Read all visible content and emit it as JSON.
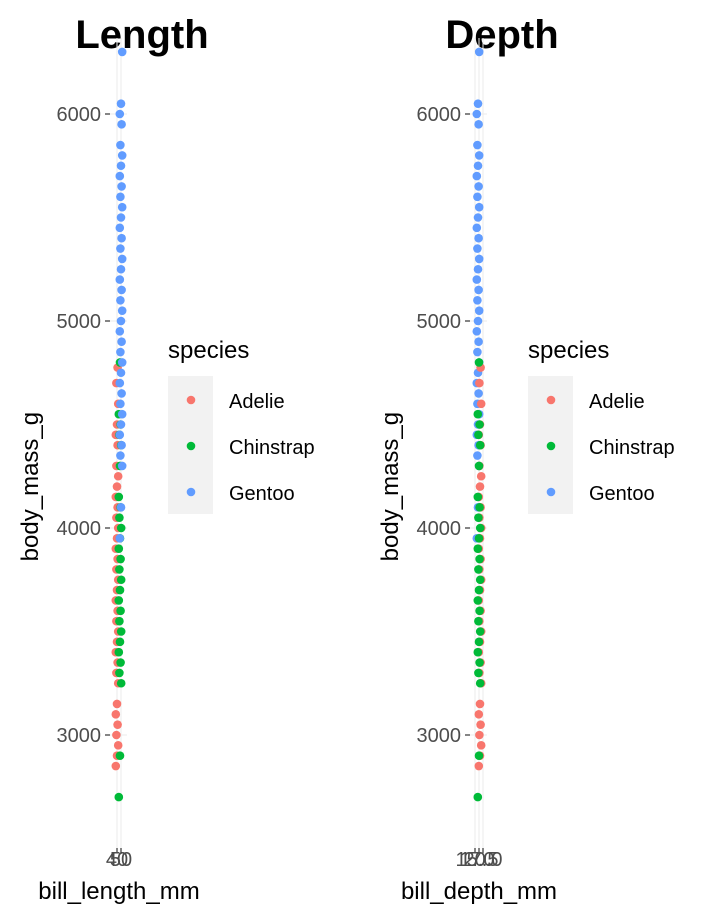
{
  "chart_data": [
    {
      "type": "scatter",
      "title": "Length",
      "xlabel": "bill_length_mm",
      "ylabel": "body_mass_g",
      "x_tick_labels": [
        "40",
        "50"
      ],
      "y_ticks": [
        3000,
        4000,
        5000,
        6000
      ],
      "ylim": [
        2500,
        6400
      ],
      "grid": true,
      "legend": {
        "title": "species",
        "position": "right",
        "entries": [
          "Adelie",
          "Chinstrap",
          "Gentoo"
        ]
      },
      "series": [
        {
          "name": "Adelie",
          "values": [
            2850,
            2900,
            2950,
            3000,
            3050,
            3100,
            3150,
            3250,
            3300,
            3350,
            3400,
            3450,
            3500,
            3550,
            3600,
            3650,
            3700,
            3750,
            3800,
            3850,
            3900,
            3950,
            4000,
            4050,
            4100,
            4150,
            4200,
            4250,
            4300,
            4400,
            4450,
            4500,
            4600,
            4700,
            4775
          ]
        },
        {
          "name": "Chinstrap",
          "values": [
            2700,
            2900,
            3250,
            3300,
            3350,
            3400,
            3450,
            3500,
            3550,
            3600,
            3650,
            3700,
            3750,
            3800,
            3850,
            3900,
            3950,
            4000,
            4050,
            4100,
            4150,
            4300,
            4400,
            4450,
            4500,
            4550,
            4800
          ]
        },
        {
          "name": "Gentoo",
          "values": [
            3950,
            4100,
            4300,
            4350,
            4400,
            4450,
            4500,
            4550,
            4600,
            4650,
            4700,
            4750,
            4800,
            4850,
            4900,
            4950,
            5000,
            5050,
            5100,
            5150,
            5200,
            5250,
            5300,
            5350,
            5400,
            5450,
            5500,
            5550,
            5600,
            5650,
            5700,
            5750,
            5800,
            5850,
            5950,
            6000,
            6050,
            6300
          ]
        }
      ]
    },
    {
      "type": "scatter",
      "title": "Depth",
      "xlabel": "bill_depth_mm",
      "ylabel": "body_mass_g",
      "x_tick_labels": [
        "15.0",
        "17.5",
        "20.0"
      ],
      "y_ticks": [
        3000,
        4000,
        5000,
        6000
      ],
      "ylim": [
        2500,
        6400
      ],
      "grid": true,
      "legend": {
        "title": "species",
        "position": "right",
        "entries": [
          "Adelie",
          "Chinstrap",
          "Gentoo"
        ]
      },
      "series": [
        {
          "name": "Adelie",
          "values": [
            2850,
            2900,
            2950,
            3000,
            3050,
            3100,
            3150,
            3250,
            3300,
            3350,
            3400,
            3450,
            3500,
            3550,
            3600,
            3650,
            3700,
            3750,
            3800,
            3850,
            3900,
            3950,
            4000,
            4050,
            4100,
            4150,
            4200,
            4250,
            4300,
            4400,
            4450,
            4500,
            4600,
            4700,
            4775
          ]
        },
        {
          "name": "Chinstrap",
          "values": [
            2700,
            2900,
            3250,
            3300,
            3350,
            3400,
            3450,
            3500,
            3550,
            3600,
            3650,
            3700,
            3750,
            3800,
            3850,
            3900,
            3950,
            4000,
            4050,
            4100,
            4150,
            4300,
            4400,
            4450,
            4500,
            4550,
            4800
          ]
        },
        {
          "name": "Gentoo",
          "values": [
            3950,
            4100,
            4300,
            4350,
            4400,
            4450,
            4500,
            4550,
            4600,
            4650,
            4700,
            4750,
            4800,
            4850,
            4900,
            4950,
            5000,
            5050,
            5100,
            5150,
            5200,
            5250,
            5300,
            5350,
            5400,
            5450,
            5500,
            5550,
            5600,
            5650,
            5700,
            5750,
            5800,
            5850,
            5950,
            6000,
            6050,
            6300
          ]
        }
      ]
    }
  ],
  "colors": {
    "Adelie": "#F8766D",
    "Chinstrap": "#00BA38",
    "Gentoo": "#619CFF",
    "legend_key_bg": "#F2F2F2",
    "grid": "#EBEBEB",
    "tick_text": "#4D4D4D"
  }
}
